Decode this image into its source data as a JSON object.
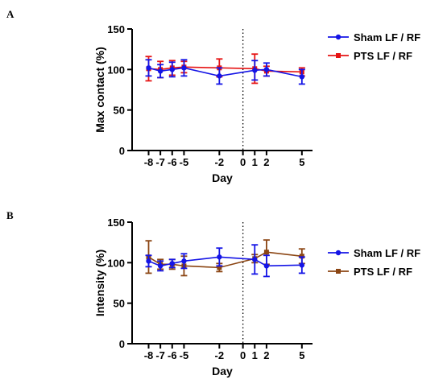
{
  "chart_data": [
    {
      "type": "line",
      "panel_label": "A",
      "xlabel": "Day",
      "ylabel": "Max contact (%)",
      "ylim": [
        0,
        150
      ],
      "yticks": [
        0,
        50,
        100,
        150
      ],
      "xticks": [
        -8,
        -7,
        -6,
        -5,
        -2,
        0,
        1,
        2,
        5
      ],
      "x_tick_labels": [
        "-8",
        "-7",
        "-6",
        "-5",
        "-2",
        "0",
        "1",
        "2",
        "5"
      ],
      "reference_line_x": 0,
      "legend_position": "right",
      "series": [
        {
          "name": "Sham LF / RF",
          "color": "#1414e6",
          "marker": "circle",
          "x": [
            -8,
            -7,
            -6,
            -5,
            -2,
            1,
            2,
            5
          ],
          "y": [
            102,
            98,
            100,
            102,
            92,
            99,
            100,
            91
          ],
          "err": [
            10,
            8,
            9,
            10,
            10,
            12,
            8,
            9
          ]
        },
        {
          "name": "PTS LF / RF",
          "color": "#e61414",
          "marker": "square",
          "x": [
            -8,
            -7,
            -6,
            -5,
            -2,
            1,
            2,
            5
          ],
          "y": [
            101,
            100,
            102,
            103,
            102,
            101,
            98,
            97
          ],
          "err": [
            15,
            10,
            9,
            7,
            11,
            18,
            6,
            5
          ]
        }
      ]
    },
    {
      "type": "line",
      "panel_label": "B",
      "xlabel": "Day",
      "ylabel": "Intensity (%)",
      "ylim": [
        0,
        150
      ],
      "yticks": [
        0,
        50,
        100,
        150
      ],
      "xticks": [
        -8,
        -7,
        -6,
        -5,
        -2,
        0,
        1,
        2,
        5
      ],
      "x_tick_labels": [
        "-8",
        "-7",
        "-6",
        "-5",
        "-2",
        "0",
        "1",
        "2",
        "5"
      ],
      "reference_line_x": 0,
      "legend_position": "right",
      "series": [
        {
          "name": "Sham LF / RF",
          "color": "#1414e6",
          "marker": "circle",
          "x": [
            -8,
            -7,
            -6,
            -5,
            -2,
            1,
            2,
            5
          ],
          "y": [
            102,
            96,
            99,
            102,
            107,
            104,
            96,
            97
          ],
          "err": [
            7,
            6,
            5,
            9,
            11,
            18,
            13,
            10
          ]
        },
        {
          "name": "PTS LF / RF",
          "color": "#8b4513",
          "marker": "square",
          "x": [
            -8,
            -7,
            -6,
            -5,
            -2,
            1,
            2,
            5
          ],
          "y": [
            107,
            98,
            98,
            96,
            94,
            105,
            113,
            108
          ],
          "err": [
            20,
            6,
            6,
            12,
            5,
            5,
            15,
            9
          ]
        }
      ]
    }
  ]
}
